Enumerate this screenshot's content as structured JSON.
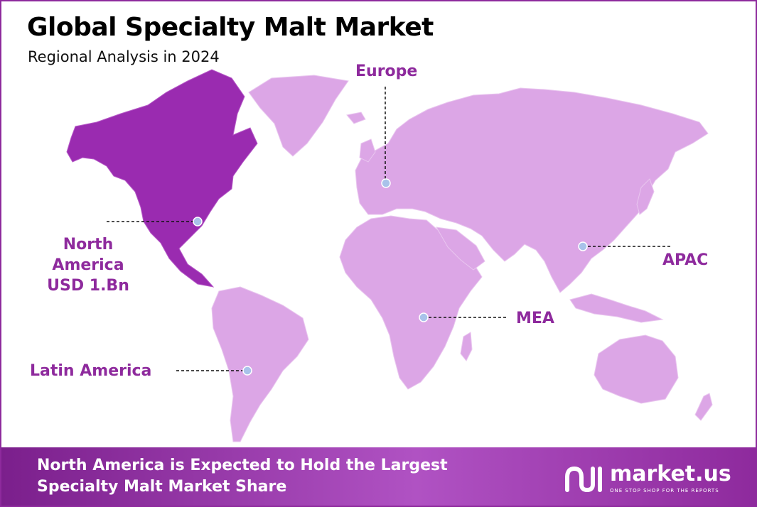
{
  "header": {
    "title": "Global Specialty Malt Market",
    "subtitle": "Regional Analysis in 2024"
  },
  "regions": {
    "europe": "Europe",
    "north_america": [
      "North",
      "America",
      "USD 1.Bn"
    ],
    "apac": "APAC",
    "mea": "MEA",
    "latin_america": "Latin America"
  },
  "colors": {
    "highlight": "#9a2bb0",
    "land": "#dca6e6",
    "accent": "#8e2a9d",
    "marker": "#a9c2ea"
  },
  "footer": {
    "line1": "North America is Expected to Hold the Largest",
    "line2": "Specialty Malt Market Share"
  },
  "brand": {
    "name": "market.us",
    "tagline": "ONE STOP SHOP FOR THE REPORTS"
  }
}
